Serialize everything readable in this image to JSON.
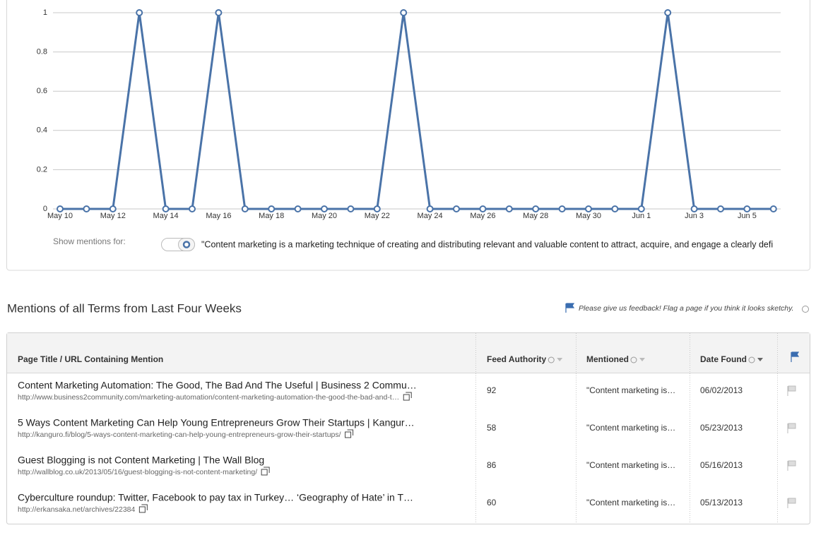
{
  "chart_data": {
    "type": "line",
    "categories": [
      "May 10",
      null,
      "May 12",
      null,
      "May 14",
      null,
      "May 16",
      null,
      "May 18",
      null,
      "May 20",
      null,
      "May 22",
      null,
      "May 24",
      null,
      "May 26",
      null,
      "May 28",
      null,
      "May 30",
      null,
      "Jun 1",
      null,
      "Jun 3",
      null,
      "Jun 5",
      null
    ],
    "series": [
      {
        "name": "\"Content marketing is a marketing technique of creating and distributing relevant and valuable content to attract, acquire, and engage a clearly defi",
        "color": "#4a73a8",
        "values": [
          0,
          0,
          0,
          1,
          0,
          0,
          1,
          0,
          0,
          0,
          0,
          0,
          0,
          1,
          0,
          0,
          0,
          0,
          0,
          0,
          0,
          0,
          0,
          1,
          0,
          0,
          0,
          0
        ]
      }
    ],
    "ylim": [
      0,
      1
    ],
    "yticks": [
      0,
      0.2,
      0.4,
      0.6,
      0.8,
      1
    ],
    "grid": true
  },
  "toggle_label": "Show mentions for:",
  "section": {
    "title": "Mentions of all Terms from Last Four Weeks",
    "feedback": "Please give us feedback! Flag a page if you think it looks sketchy."
  },
  "table": {
    "headers": [
      "Page Title / URL Containing Mention",
      "Feed Authority",
      "Mentioned",
      "Date Found"
    ],
    "rows": [
      {
        "title": "Content Marketing Automation: The Good, The Bad And The Useful | Business 2 Commu…",
        "url": "http://www.business2community.com/marketing-automation/content-marketing-automation-the-good-the-bad-and-t…",
        "authority": 92,
        "mentioned": "\"Content marketing is…",
        "date": "06/02/2013"
      },
      {
        "title": "5 Ways Content Marketing Can Help Young Entrepreneurs Grow Their Startups | Kangur…",
        "url": "http://kanguro.fi/blog/5-ways-content-marketing-can-help-young-entrepreneurs-grow-their-startups/",
        "authority": 58,
        "mentioned": "\"Content marketing is…",
        "date": "05/23/2013"
      },
      {
        "title": "Guest Blogging is not Content Marketing | The Wall Blog",
        "url": "http://wallblog.co.uk/2013/05/16/guest-blogging-is-not-content-marketing/",
        "authority": 86,
        "mentioned": "\"Content marketing is…",
        "date": "05/16/2013"
      },
      {
        "title": "Cyberculture roundup: Twitter, Facebook to pay tax in Turkey… ‘Geography of Hate’ in T…",
        "url": "http://erkansaka.net/archives/22384",
        "authority": 60,
        "mentioned": "\"Content marketing is…",
        "date": "05/13/2013"
      }
    ]
  }
}
